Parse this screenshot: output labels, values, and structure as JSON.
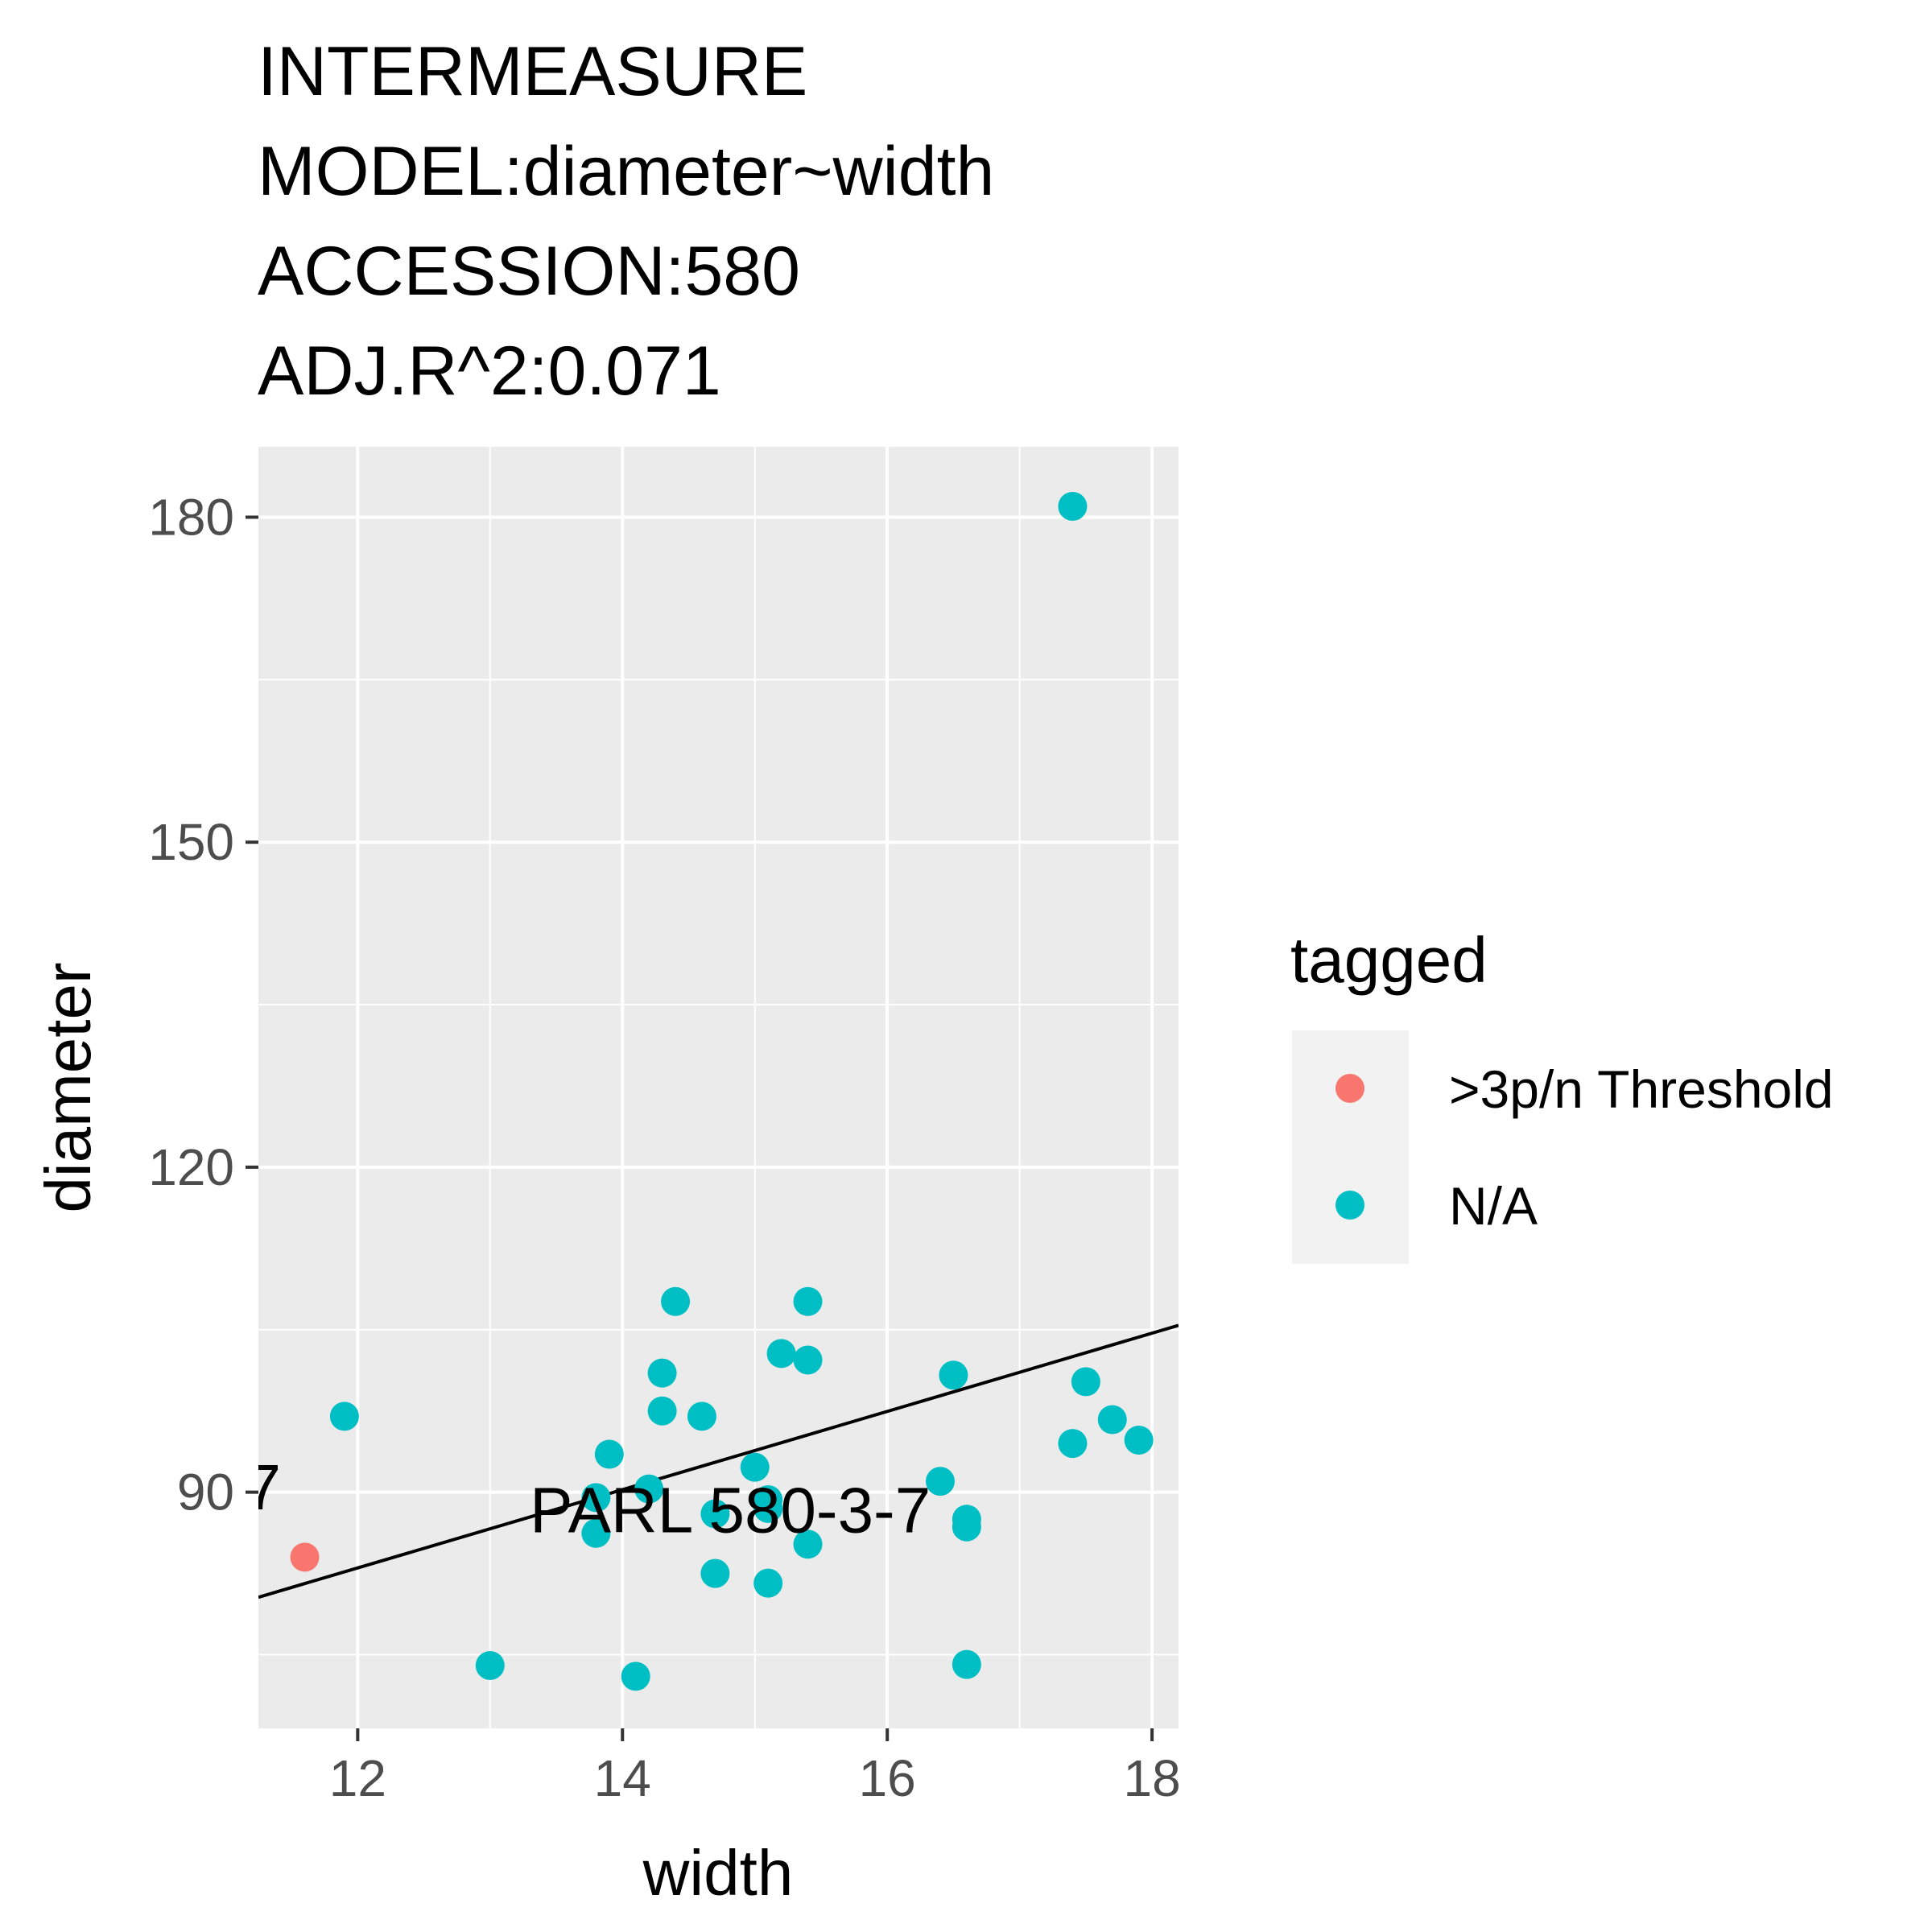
{
  "chart_data": {
    "type": "scatter",
    "title_lines": [
      "INTERMEASURE",
      "MODEL:diameter~width",
      "ACCESSION:580",
      "ADJ.R^2:0.071"
    ],
    "xlabel": "width",
    "ylabel": "diameter",
    "xlim": [
      11.25,
      18.2
    ],
    "ylim": [
      68.2,
      186.5
    ],
    "x_ticks": [
      12,
      14,
      16,
      18
    ],
    "y_ticks": [
      90,
      120,
      150,
      180
    ],
    "x_minor_ticks": [
      11,
      13,
      15,
      17
    ],
    "y_minor_ticks": [
      75,
      105,
      135,
      165
    ],
    "grid": true,
    "legend": {
      "title": "tagged",
      "position": "right",
      "entries": [
        {
          "label": ">3p/n Threshold",
          "color": "#F8766D"
        },
        {
          "label": "N/A",
          "color": "#00BFC4"
        }
      ]
    },
    "series": [
      {
        "name": ">3p/n Threshold",
        "color": "#F8766D",
        "points": [
          [
            11.6,
            84
          ]
        ]
      },
      {
        "name": "N/A",
        "color": "#00BFC4",
        "points": [
          [
            11.9,
            97
          ],
          [
            13.0,
            74
          ],
          [
            13.8,
            89.5
          ],
          [
            13.8,
            86.2
          ],
          [
            13.9,
            93.5
          ],
          [
            14.1,
            73
          ],
          [
            14.2,
            90.3
          ],
          [
            14.3,
            101
          ],
          [
            14.3,
            97.5
          ],
          [
            14.4,
            107.6
          ],
          [
            14.6,
            97
          ],
          [
            14.7,
            88
          ],
          [
            14.7,
            82.5
          ],
          [
            15.0,
            92.3
          ],
          [
            15.1,
            89.3
          ],
          [
            15.1,
            88.5
          ],
          [
            15.1,
            81.6
          ],
          [
            15.2,
            102.8
          ],
          [
            15.4,
            107.6
          ],
          [
            15.4,
            102.2
          ],
          [
            15.4,
            85.2
          ],
          [
            16.4,
            91
          ],
          [
            16.5,
            100.8
          ],
          [
            16.6,
            87.5
          ],
          [
            16.6,
            86.8
          ],
          [
            16.6,
            74.1
          ],
          [
            17.4,
            181
          ],
          [
            17.4,
            94.5
          ],
          [
            17.5,
            100.2
          ],
          [
            17.7,
            96.7
          ],
          [
            17.9,
            94.8
          ]
        ]
      }
    ],
    "regression_line": {
      "x": [
        11.25,
        18.2
      ],
      "y": [
        80.3,
        105.4
      ]
    },
    "annotations": [
      {
        "text": "PARL 580-3-7",
        "x": 13.3,
        "y": 86.3
      },
      {
        "text": "7",
        "x": 11.15,
        "y": 88.4
      }
    ]
  }
}
